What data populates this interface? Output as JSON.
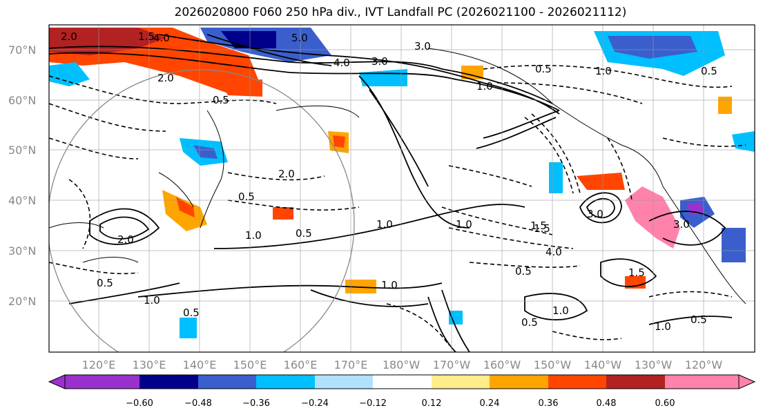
{
  "title": "2026020800 F060 250 hPa div., IVT Landfall PC (2026021100 - 2026021112)",
  "lat_labels": [
    "70°N",
    "60°N",
    "50°N",
    "40°N",
    "30°N",
    "20°N"
  ],
  "lon_labels": [
    "120°E",
    "130°E",
    "140°E",
    "150°E",
    "160°E",
    "170°E",
    "180°W",
    "170°W",
    "160°W",
    "150°W",
    "140°W",
    "130°W",
    "120°W"
  ],
  "colorbar": {
    "colors": [
      "#9932cc",
      "#00008b",
      "#3a5fcd",
      "#00bfff",
      "#b0e2ff",
      "#ffffff",
      "#ffec8b",
      "#ffa500",
      "#ff4500",
      "#b22222",
      "#ff82ab"
    ],
    "tick_labels": [
      "−0.60",
      "−0.48",
      "−0.36",
      "−0.24",
      "−0.12",
      "0.12",
      "0.24",
      "0.36",
      "0.48",
      "0.60"
    ]
  },
  "contour_labels": [
    {
      "text": "2.0"
    },
    {
      "text": "1.5"
    },
    {
      "text": "4.0"
    },
    {
      "text": "5.0"
    },
    {
      "text": "3.0"
    },
    {
      "text": "4.0"
    },
    {
      "text": "3.0"
    },
    {
      "text": "1.0"
    },
    {
      "text": "0.5"
    },
    {
      "text": "2.0"
    },
    {
      "text": "0.5"
    },
    {
      "text": "1.0"
    },
    {
      "text": "0.5"
    },
    {
      "text": "1.0"
    },
    {
      "text": "1.5"
    },
    {
      "text": "3.0"
    },
    {
      "text": "1.0"
    },
    {
      "text": "0.5"
    },
    {
      "text": "1.0"
    },
    {
      "text": "2.0"
    },
    {
      "text": "0.5"
    },
    {
      "text": "1.5"
    },
    {
      "text": "3.0"
    },
    {
      "text": "4.0"
    },
    {
      "text": "1.0"
    },
    {
      "text": "0.5"
    },
    {
      "text": "1.5"
    },
    {
      "text": "1.0"
    },
    {
      "text": "0.5"
    },
    {
      "text": "1.0"
    },
    {
      "text": "0.5"
    },
    {
      "text": "1.0"
    },
    {
      "text": "0.5"
    },
    {
      "text": "2.0"
    },
    {
      "text": "0.5"
    }
  ]
}
